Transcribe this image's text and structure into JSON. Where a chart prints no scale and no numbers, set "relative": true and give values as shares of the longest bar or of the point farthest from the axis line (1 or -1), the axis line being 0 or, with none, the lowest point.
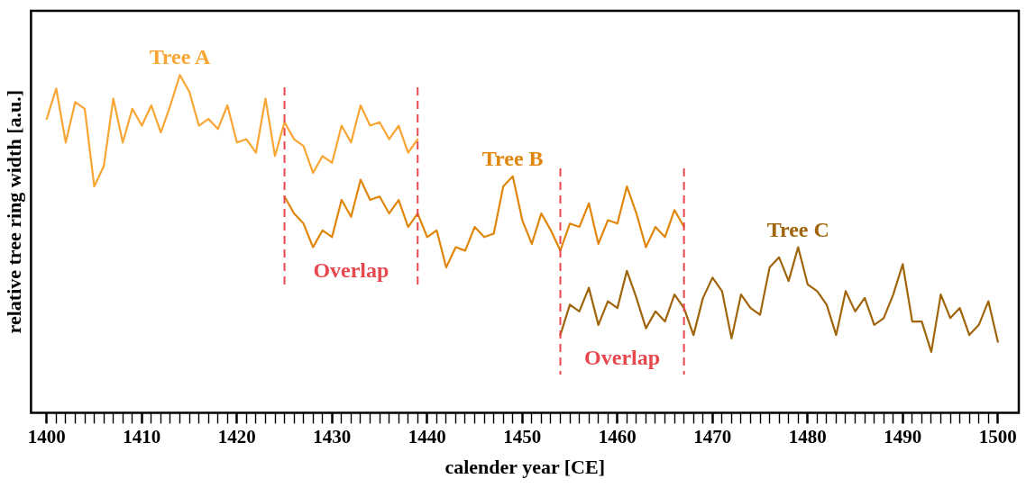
{
  "chart_data": {
    "type": "line",
    "relative": true,
    "xlabel": "calender year [CE]",
    "ylabel": "relative tree ring width [a.u.]",
    "xlim": [
      1398.35,
      1502.2
    ],
    "xticks": [
      1400,
      {
        "value": 1401,
        "label": null
      },
      {
        "value": 1402,
        "label": null
      },
      {
        "value": 1403,
        "label": null
      },
      {
        "value": 1404,
        "label": null
      },
      {
        "value": 1405,
        "label": null
      },
      {
        "value": 1406,
        "label": null
      },
      {
        "value": 1407,
        "label": null
      },
      {
        "value": 1408,
        "label": null
      },
      {
        "value": 1409,
        "label": null
      },
      1410,
      {
        "value": 1411,
        "label": null
      },
      {
        "value": 1412,
        "label": null
      },
      {
        "value": 1413,
        "label": null
      },
      {
        "value": 1414,
        "label": null
      },
      {
        "value": 1415,
        "label": null
      },
      {
        "value": 1416,
        "label": null
      },
      {
        "value": 1417,
        "label": null
      },
      {
        "value": 1418,
        "label": null
      },
      {
        "value": 1419,
        "label": null
      },
      1420,
      {
        "value": 1421,
        "label": null
      },
      {
        "value": 1422,
        "label": null
      },
      {
        "value": 1423,
        "label": null
      },
      {
        "value": 1424,
        "label": null
      },
      {
        "value": 1425,
        "label": null
      },
      {
        "value": 1426,
        "label": null
      },
      {
        "value": 1427,
        "label": null
      },
      {
        "value": 1428,
        "label": null
      },
      {
        "value": 1429,
        "label": null
      },
      1430,
      {
        "value": 1431,
        "label": null
      },
      {
        "value": 1432,
        "label": null
      },
      {
        "value": 1433,
        "label": null
      },
      {
        "value": 1434,
        "label": null
      },
      {
        "value": 1435,
        "label": null
      },
      {
        "value": 1436,
        "label": null
      },
      {
        "value": 1437,
        "label": null
      },
      {
        "value": 1438,
        "label": null
      },
      {
        "value": 1439,
        "label": null
      },
      1440,
      {
        "value": 1441,
        "label": null
      },
      {
        "value": 1442,
        "label": null
      },
      {
        "value": 1443,
        "label": null
      },
      {
        "value": 1444,
        "label": null
      },
      {
        "value": 1445,
        "label": null
      },
      {
        "value": 1446,
        "label": null
      },
      {
        "value": 1447,
        "label": null
      },
      {
        "value": 1448,
        "label": null
      },
      {
        "value": 1449,
        "label": null
      },
      1450,
      {
        "value": 1451,
        "label": null
      },
      {
        "value": 1452,
        "label": null
      },
      {
        "value": 1453,
        "label": null
      },
      {
        "value": 1454,
        "label": null
      },
      {
        "value": 1455,
        "label": null
      },
      {
        "value": 1456,
        "label": null
      },
      {
        "value": 1457,
        "label": null
      },
      {
        "value": 1458,
        "label": null
      },
      {
        "value": 1459,
        "label": null
      },
      1460,
      {
        "value": 1461,
        "label": null
      },
      {
        "value": 1462,
        "label": null
      },
      {
        "value": 1463,
        "label": null
      },
      {
        "value": 1464,
        "label": null
      },
      {
        "value": 1465,
        "label": null
      },
      {
        "value": 1466,
        "label": null
      },
      {
        "value": 1467,
        "label": null
      },
      {
        "value": 1468,
        "label": null
      },
      {
        "value": 1469,
        "label": null
      },
      1470,
      {
        "value": 1471,
        "label": null
      },
      {
        "value": 1472,
        "label": null
      },
      {
        "value": 1473,
        "label": null
      },
      {
        "value": 1474,
        "label": null
      },
      {
        "value": 1475,
        "label": null
      },
      {
        "value": 1476,
        "label": null
      },
      {
        "value": 1477,
        "label": null
      },
      {
        "value": 1478,
        "label": null
      },
      {
        "value": 1479,
        "label": null
      },
      1480,
      {
        "value": 1481,
        "label": null
      },
      {
        "value": 1482,
        "label": null
      },
      {
        "value": 1483,
        "label": null
      },
      {
        "value": 1484,
        "label": null
      },
      {
        "value": 1485,
        "label": null
      },
      {
        "value": 1486,
        "label": null
      },
      {
        "value": 1487,
        "label": null
      },
      {
        "value": 1488,
        "label": null
      },
      {
        "value": 1489,
        "label": null
      },
      1490,
      {
        "value": 1491,
        "label": null
      },
      {
        "value": 1492,
        "label": null
      },
      {
        "value": 1493,
        "label": null
      },
      {
        "value": 1494,
        "label": null
      },
      {
        "value": 1495,
        "label": null
      },
      {
        "value": 1496,
        "label": null
      },
      {
        "value": 1497,
        "label": null
      },
      {
        "value": 1498,
        "label": null
      },
      {
        "value": 1499,
        "label": null
      },
      1500
    ],
    "tick_labels": "x",
    "legend": false,
    "grid": false,
    "marker": "none",
    "line_style": "solid",
    "series": [
      {
        "name": "Tree A",
        "color": "#f9a533",
        "x": [
          1400,
          1401,
          1402,
          1403,
          1404,
          1405,
          1406,
          1407,
          1408,
          1409,
          1410,
          1411,
          1412,
          1413,
          1414,
          1415,
          1416,
          1417,
          1418,
          1419,
          1420,
          1421,
          1422,
          1423,
          1424,
          1425,
          1426,
          1427,
          1428,
          1429,
          1430,
          1431,
          1432,
          1433,
          1434,
          1435,
          1436,
          1437,
          1438,
          1439
        ],
        "values": [
          0.87,
          0.96,
          0.8,
          0.92,
          0.9,
          0.67,
          0.73,
          0.93,
          0.8,
          0.9,
          0.85,
          0.91,
          0.83,
          0.91,
          1,
          0.95,
          0.85,
          0.87,
          0.84,
          0.91,
          0.8,
          0.81,
          0.77,
          0.93,
          0.76,
          0.86,
          0.81,
          0.79,
          0.71,
          0.76,
          0.74,
          0.85,
          0.8,
          0.91,
          0.85,
          0.86,
          0.81,
          0.85,
          0.77,
          0.81
        ]
      },
      {
        "name": "Tree B",
        "color": "#e0860a",
        "x": [
          1425,
          1426,
          1427,
          1428,
          1429,
          1430,
          1431,
          1432,
          1433,
          1434,
          1435,
          1436,
          1437,
          1438,
          1439,
          1440,
          1441,
          1442,
          1443,
          1444,
          1445,
          1446,
          1447,
          1448,
          1449,
          1450,
          1451,
          1452,
          1453,
          1454,
          1455,
          1456,
          1457,
          1458,
          1459,
          1460,
          1461,
          1462,
          1463,
          1464,
          1465,
          1466,
          1467
        ],
        "values": [
          0.64,
          0.59,
          0.56,
          0.49,
          0.54,
          0.52,
          0.63,
          0.58,
          0.69,
          0.63,
          0.64,
          0.59,
          0.63,
          0.55,
          0.59,
          0.52,
          0.54,
          0.43,
          0.49,
          0.48,
          0.55,
          0.52,
          0.53,
          0.67,
          0.7,
          0.57,
          0.5,
          0.59,
          0.54,
          0.48,
          0.56,
          0.55,
          0.62,
          0.5,
          0.57,
          0.56,
          0.67,
          0.59,
          0.49,
          0.55,
          0.52,
          0.6,
          0.55
        ]
      },
      {
        "name": "Tree C",
        "color": "#a0640a",
        "x": [
          1454,
          1455,
          1456,
          1457,
          1458,
          1459,
          1460,
          1461,
          1462,
          1463,
          1464,
          1465,
          1466,
          1467,
          1468,
          1469,
          1470,
          1471,
          1472,
          1473,
          1474,
          1475,
          1476,
          1477,
          1478,
          1479,
          1480,
          1481,
          1482,
          1483,
          1484,
          1485,
          1486,
          1487,
          1488,
          1489,
          1490,
          1491,
          1492,
          1493,
          1494,
          1495,
          1496,
          1497,
          1498,
          1499,
          1500
        ],
        "values": [
          0.23,
          0.32,
          0.3,
          0.37,
          0.26,
          0.33,
          0.31,
          0.42,
          0.34,
          0.25,
          0.3,
          0.27,
          0.35,
          0.31,
          0.23,
          0.34,
          0.4,
          0.36,
          0.22,
          0.35,
          0.31,
          0.29,
          0.43,
          0.46,
          0.39,
          0.49,
          0.38,
          0.36,
          0.32,
          0.23,
          0.36,
          0.3,
          0.34,
          0.26,
          0.28,
          0.35,
          0.44,
          0.27,
          0.27,
          0.18,
          0.35,
          0.28,
          0.31,
          0.23,
          0.26,
          0.33,
          0.21
        ]
      }
    ],
    "ref_lines": [
      {
        "axis": "x",
        "value": 1425,
        "color": "#e8474e",
        "line_style": "dashed"
      },
      {
        "axis": "x",
        "value": 1439,
        "color": "#e8474e",
        "line_style": "dashed"
      },
      {
        "axis": "x",
        "value": 1454,
        "color": "#e8474e",
        "line_style": "dashed"
      },
      {
        "axis": "x",
        "value": 1467,
        "color": "#e8474e",
        "line_style": "dashed"
      }
    ],
    "annotations": [
      "Overlap",
      "Overlap"
    ]
  }
}
